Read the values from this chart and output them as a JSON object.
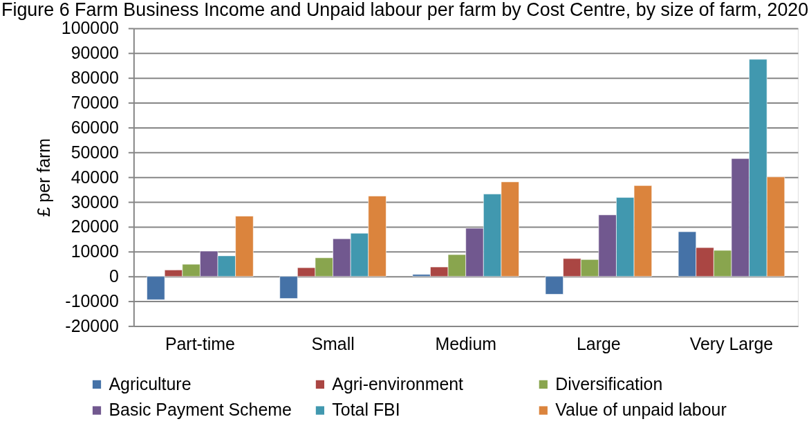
{
  "chart_data": {
    "type": "bar",
    "title": "Figure 6 Farm Business Income and Unpaid labour per farm by Cost Centre, by size of farm, 2020",
    "ylabel": "£ per farm",
    "categories": [
      "Part-time",
      "Small",
      "Medium",
      "Large",
      "Very Large"
    ],
    "series": [
      {
        "name": "Agriculture",
        "color": "#4572a7",
        "values": [
          -9400,
          -8900,
          800,
          -7200,
          18000
        ]
      },
      {
        "name": "Agri-environment",
        "color": "#aa4643",
        "values": [
          2600,
          3500,
          3800,
          7200,
          11600
        ]
      },
      {
        "name": "Diversification",
        "color": "#89a54e",
        "values": [
          4900,
          7500,
          8800,
          6800,
          10500
        ]
      },
      {
        "name": "Basic Payment Scheme",
        "color": "#71588f",
        "values": [
          10200,
          15200,
          19400,
          24800,
          47500
        ]
      },
      {
        "name": "Total FBI",
        "color": "#4198af",
        "values": [
          8300,
          17400,
          33200,
          31800,
          87500
        ]
      },
      {
        "name": "Value of unpaid labour",
        "color": "#db843d",
        "values": [
          24300,
          32400,
          38100,
          36600,
          40100
        ]
      }
    ],
    "ylim": [
      -20000,
      100000
    ],
    "yticks": [
      -20000,
      -10000,
      0,
      10000,
      20000,
      30000,
      40000,
      50000,
      60000,
      70000,
      80000,
      90000,
      100000
    ],
    "grid": "y",
    "legend": "bottom"
  }
}
